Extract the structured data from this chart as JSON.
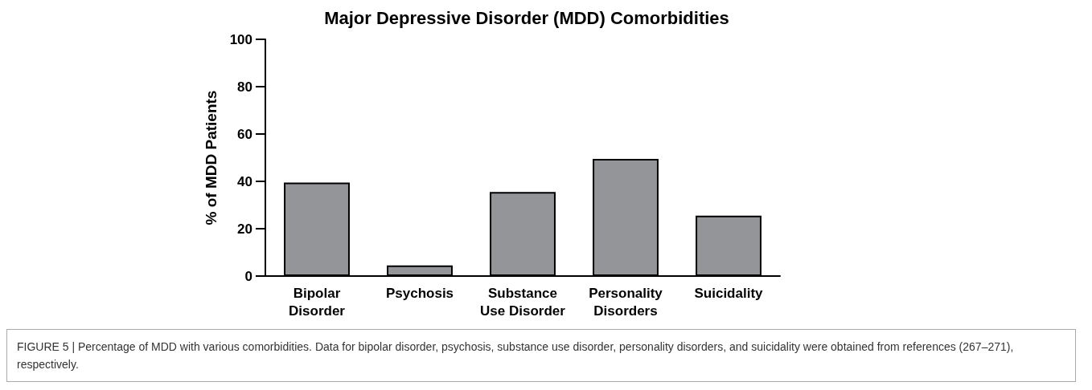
{
  "chart_data": {
    "type": "bar",
    "title": "Major Depressive Disorder (MDD) Comorbidities",
    "ylabel": "% of MDD Patients",
    "categories": [
      "Bipolar\nDisorder",
      "Psychosis",
      "Substance\nUse Disorder",
      "Personality\nDisorders",
      "Suicidality"
    ],
    "values": [
      39.5,
      4.5,
      35.5,
      49.5,
      25.5
    ],
    "color": "#939598",
    "ylim": [
      0,
      100
    ],
    "yticks": [
      0,
      20,
      40,
      60,
      80,
      100
    ],
    "grid": false,
    "annotations": [
      "FIGURE 5 | Percentage of MDD with various comorbidities. Data for bipolar disorder, psychosis, substance use disorder, personality disorders, and suicidality were obtained from references (267–271), respectively."
    ]
  }
}
